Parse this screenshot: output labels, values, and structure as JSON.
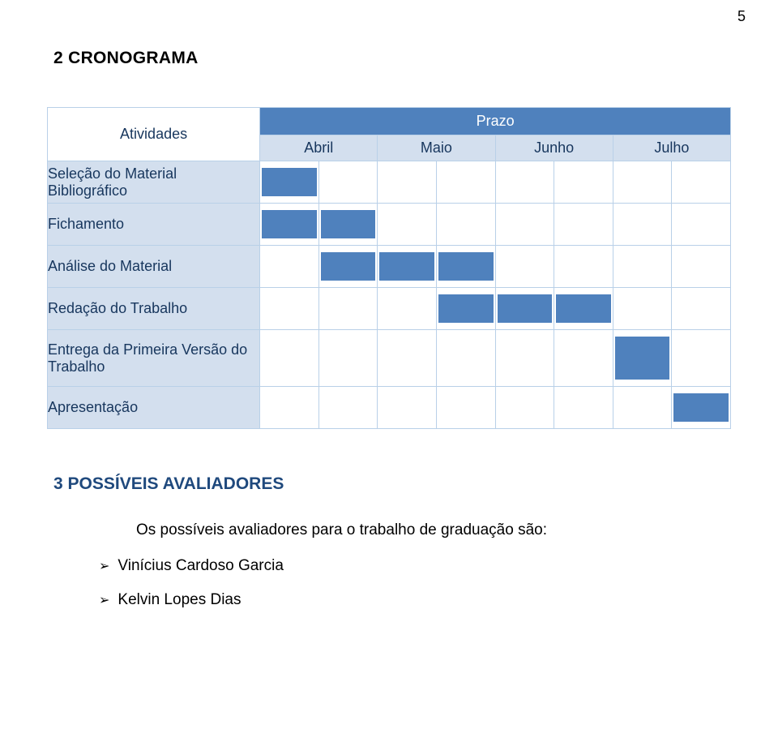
{
  "page_number": "5",
  "section1_title": "2 CRONOGRAMA",
  "section2_title": "3 POSSÍVEIS AVALIADORES",
  "intro_text": "Os possíveis avaliadores para o trabalho de graduação são:",
  "evaluators": [
    "Vinícius Cardoso Garcia",
    "Kelvin Lopes Dias"
  ],
  "gantt": {
    "type": "gantt",
    "activities_header": "Atividades",
    "prazo_header": "Prazo",
    "months": [
      "Abril",
      "Maio",
      "Junho",
      "Julho"
    ],
    "sub_per_month": 2,
    "activities": [
      {
        "label": "Seleção do Material Bibliográfico",
        "cells": [
          1,
          0,
          0,
          0,
          0,
          0,
          0,
          0
        ]
      },
      {
        "label": "Fichamento",
        "cells": [
          1,
          1,
          0,
          0,
          0,
          0,
          0,
          0
        ]
      },
      {
        "label": "Análise do Material",
        "cells": [
          0,
          1,
          1,
          1,
          0,
          0,
          0,
          0
        ]
      },
      {
        "label": "Redação do Trabalho",
        "cells": [
          0,
          0,
          0,
          1,
          1,
          1,
          0,
          0
        ]
      },
      {
        "label": "Entrega da Primeira Versão do Trabalho",
        "cells": [
          0,
          0,
          0,
          0,
          0,
          0,
          1,
          0
        ],
        "tall": true
      },
      {
        "label": "Apresentação",
        "cells": [
          0,
          0,
          0,
          0,
          0,
          0,
          0,
          1
        ]
      }
    ],
    "colors": {
      "header_bg": "#4f81bd",
      "header_text": "#ffffff",
      "month_bg": "#d3dfee",
      "activity_bg": "#d3dfee",
      "activity_text": "#17365d",
      "cell_border": "#b9d0e8",
      "bar_fill": "#4f81bd",
      "background": "#ffffff"
    },
    "font_family": "Arial",
    "header_fontsize": 18,
    "activity_fontsize": 18
  },
  "section2_color": "#1f497d",
  "bullet_glyph": "➢"
}
